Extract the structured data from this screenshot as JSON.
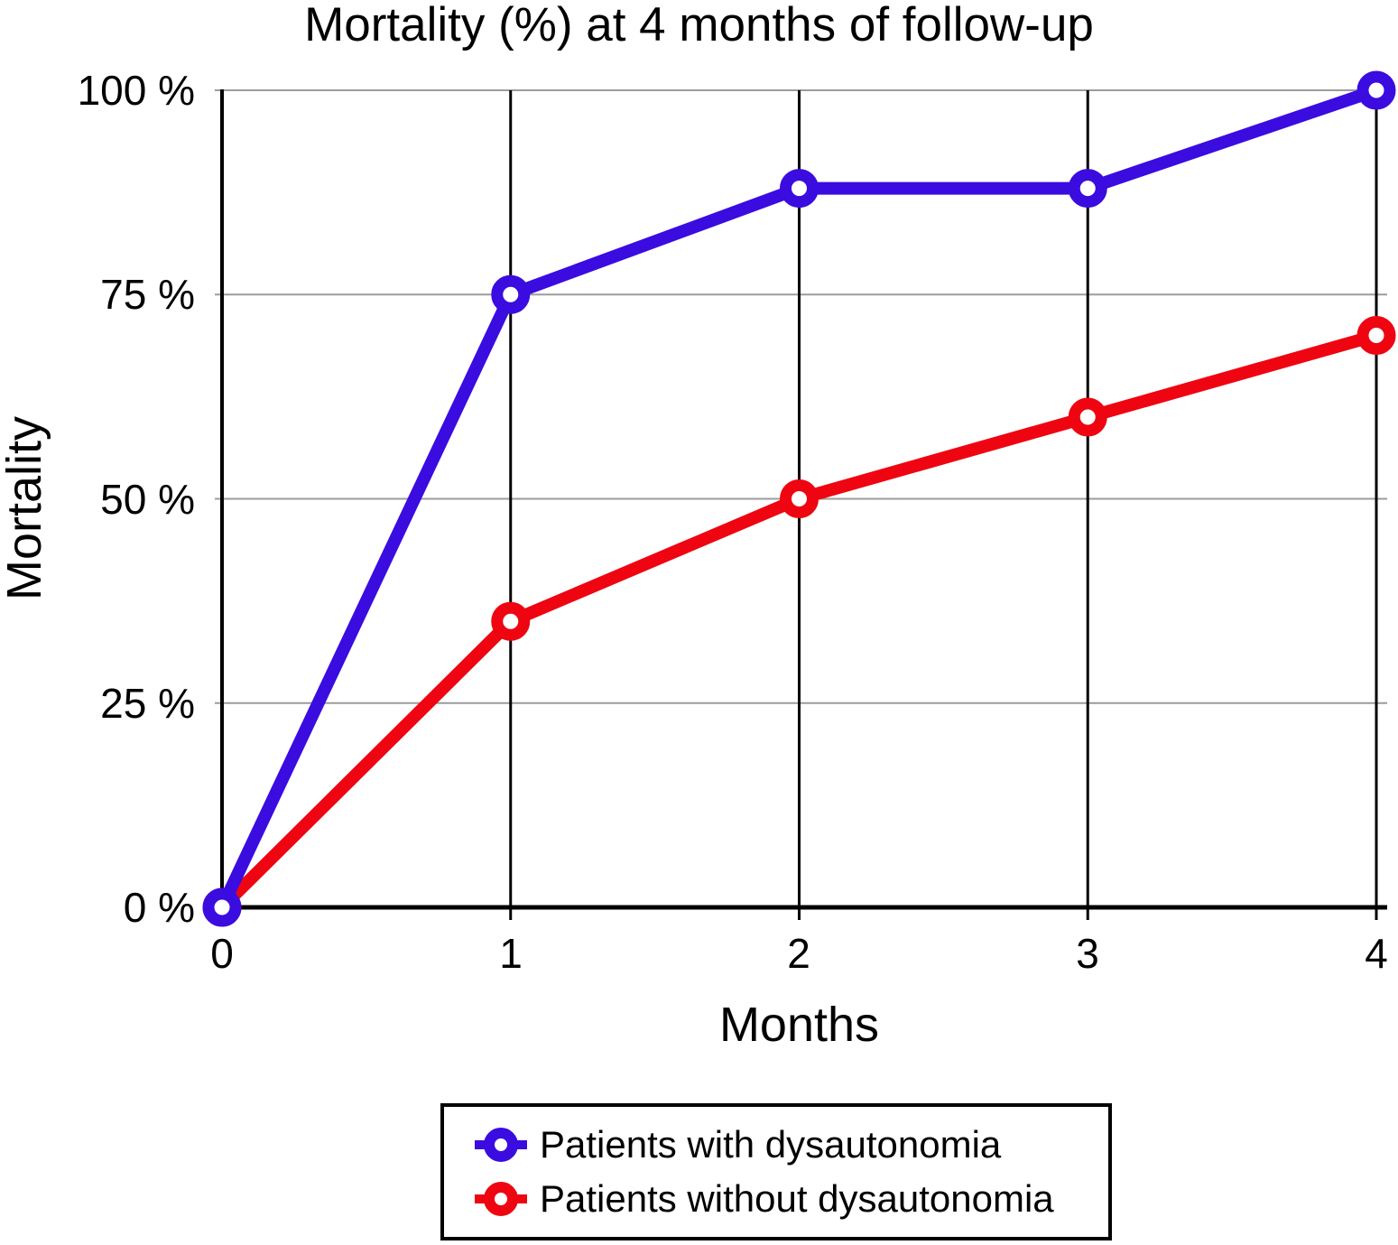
{
  "chart_data": {
    "type": "line",
    "title": "Mortality (%) at 4 months of follow-up",
    "xlabel": "Months",
    "ylabel": "Mortality",
    "x": [
      0,
      1,
      2,
      3,
      4
    ],
    "xlim": [
      0,
      4
    ],
    "ylim": [
      0,
      100
    ],
    "xticks": [
      0,
      1,
      2,
      3,
      4
    ],
    "xtick_labels": [
      "0",
      "1",
      "2",
      "3",
      "4"
    ],
    "yticks": [
      0,
      25,
      50,
      75,
      100
    ],
    "ytick_labels": [
      "0 %",
      "25 %",
      "50 %",
      "75 %",
      "100 %"
    ],
    "grid": {
      "horizontal": true,
      "vertical": true,
      "horizontal_color": "#9c9c9c",
      "vertical_color": "#000000"
    },
    "axis_color": "#000000",
    "background_color": "#ffffff",
    "series": [
      {
        "name": "Patients with dysautonomia",
        "color": "#3a0ce0",
        "values": [
          0,
          75,
          88,
          88,
          100
        ]
      },
      {
        "name": "Patients without dysautonomia",
        "color": "#ee0511",
        "values": [
          0,
          35,
          50,
          60,
          70
        ]
      }
    ],
    "legend": {
      "position": "bottom",
      "border_color": "#000000",
      "entries": [
        "Patients with dysautonomia",
        "Patients without dysautonomia"
      ]
    }
  }
}
